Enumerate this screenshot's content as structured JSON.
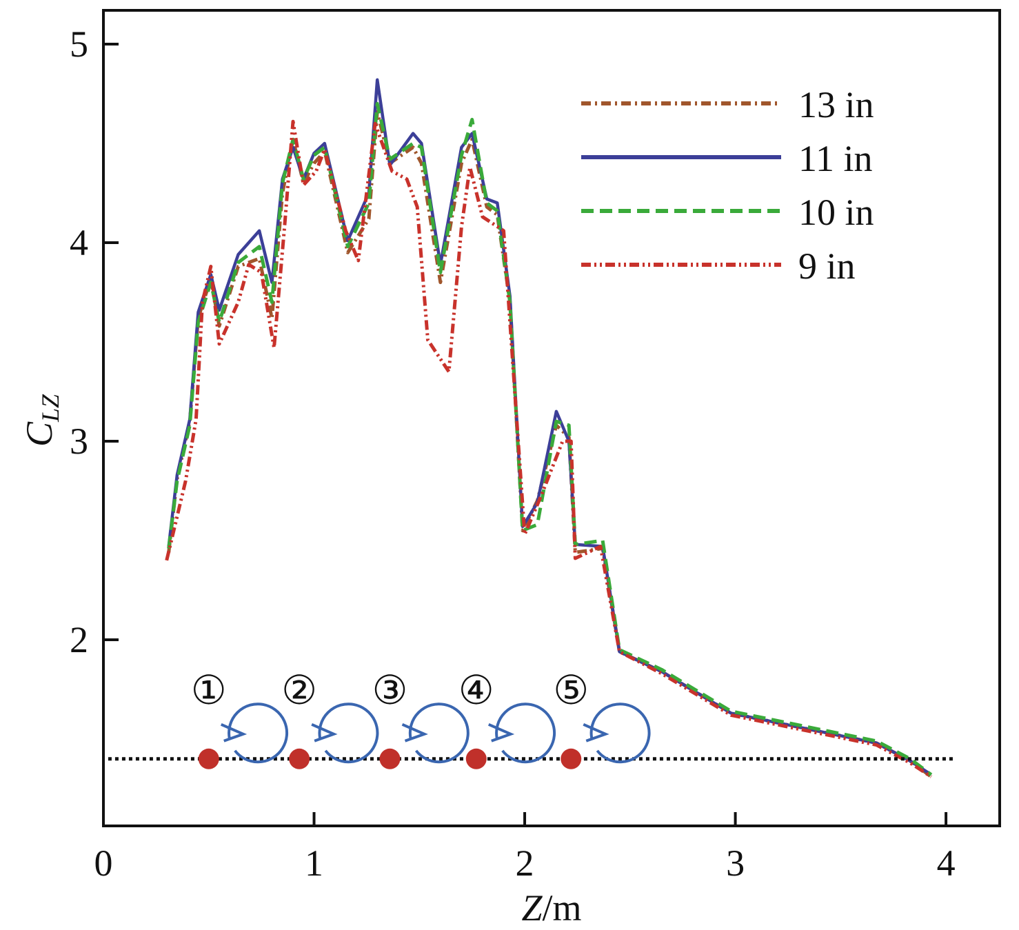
{
  "chart_data": {
    "type": "line",
    "title": "",
    "xlabel_italic": "Z",
    "xlabel_unit": "/m",
    "ylabel_main": "C",
    "ylabel_sub": "LZ",
    "xlim": [
      0,
      4.255
    ],
    "ylim": [
      1.0625,
      5.17
    ],
    "xticks": [
      0,
      1,
      2,
      3,
      4
    ],
    "yticks": [
      2,
      3,
      4,
      5
    ],
    "grid": false,
    "legend_position": "top-right",
    "series": [
      {
        "name": "13 in",
        "color": "#a0562c",
        "dash": "14,6,3,6",
        "x": [
          0.31,
          0.35,
          0.41,
          0.45,
          0.51,
          0.55,
          0.64,
          0.74,
          0.8,
          0.85,
          0.9,
          0.95,
          1.0,
          1.05,
          1.16,
          1.26,
          1.3,
          1.36,
          1.47,
          1.51,
          1.6,
          1.7,
          1.75,
          1.82,
          1.87,
          1.93,
          1.99,
          2.06,
          2.15,
          2.21,
          2.24,
          2.37,
          2.45,
          2.65,
          2.98,
          3.44,
          3.67,
          3.83,
          3.93
        ],
        "y": [
          2.44,
          2.81,
          3.1,
          3.62,
          3.82,
          3.58,
          3.88,
          3.92,
          3.62,
          4.25,
          4.52,
          4.3,
          4.4,
          4.46,
          3.95,
          4.12,
          4.66,
          4.4,
          4.48,
          4.4,
          3.8,
          4.4,
          4.52,
          4.18,
          4.14,
          3.7,
          2.55,
          2.7,
          3.08,
          3.02,
          2.44,
          2.46,
          1.94,
          1.84,
          1.63,
          1.53,
          1.48,
          1.39,
          1.31
        ]
      },
      {
        "name": "11 in",
        "color": "#3c3f98",
        "dash": "",
        "x": [
          0.31,
          0.35,
          0.41,
          0.45,
          0.51,
          0.55,
          0.64,
          0.74,
          0.8,
          0.85,
          0.9,
          0.95,
          1.0,
          1.05,
          1.16,
          1.26,
          1.3,
          1.36,
          1.47,
          1.51,
          1.6,
          1.7,
          1.75,
          1.82,
          1.87,
          1.93,
          1.99,
          2.06,
          2.15,
          2.21,
          2.24,
          2.37,
          2.45,
          2.65,
          2.98,
          3.44,
          3.67,
          3.83,
          3.93
        ],
        "y": [
          2.47,
          2.83,
          3.11,
          3.65,
          3.84,
          3.66,
          3.94,
          4.06,
          3.8,
          4.32,
          4.48,
          4.32,
          4.45,
          4.5,
          4.01,
          4.25,
          4.82,
          4.39,
          4.55,
          4.5,
          3.89,
          4.48,
          4.55,
          4.22,
          4.2,
          3.73,
          2.57,
          2.69,
          3.15,
          3.0,
          2.48,
          2.47,
          1.94,
          1.84,
          1.63,
          1.53,
          1.48,
          1.39,
          1.32
        ]
      },
      {
        "name": "10 in",
        "color": "#3aaa3a",
        "dash": "18,9",
        "x": [
          0.31,
          0.35,
          0.41,
          0.45,
          0.51,
          0.55,
          0.64,
          0.74,
          0.8,
          0.85,
          0.9,
          0.95,
          1.0,
          1.05,
          1.16,
          1.26,
          1.3,
          1.36,
          1.47,
          1.51,
          1.6,
          1.7,
          1.75,
          1.82,
          1.87,
          1.93,
          1.99,
          2.06,
          2.15,
          2.21,
          2.24,
          2.37,
          2.45,
          2.65,
          2.98,
          3.44,
          3.67,
          3.83,
          3.93
        ],
        "y": [
          2.46,
          2.8,
          3.08,
          3.6,
          3.8,
          3.6,
          3.9,
          3.98,
          3.7,
          4.3,
          4.52,
          4.32,
          4.44,
          4.48,
          3.98,
          4.2,
          4.7,
          4.42,
          4.5,
          4.48,
          3.85,
          4.44,
          4.62,
          4.2,
          4.16,
          3.7,
          2.55,
          2.58,
          3.1,
          3.08,
          2.48,
          2.5,
          1.95,
          1.85,
          1.64,
          1.54,
          1.49,
          1.4,
          1.32
        ]
      },
      {
        "name": "9 in",
        "color": "#c8322b",
        "dash": "14,5,3,5,3,5",
        "x": [
          0.3,
          0.39,
          0.44,
          0.47,
          0.51,
          0.55,
          0.64,
          0.69,
          0.75,
          0.81,
          0.86,
          0.9,
          0.95,
          1.01,
          1.05,
          1.15,
          1.21,
          1.29,
          1.37,
          1.44,
          1.49,
          1.54,
          1.64,
          1.7,
          1.74,
          1.8,
          1.9,
          2.0,
          2.08,
          2.18,
          2.22,
          2.24,
          2.36,
          2.45,
          2.65,
          2.98,
          3.44,
          3.67,
          3.83,
          3.93
        ],
        "y": [
          2.4,
          2.8,
          3.11,
          3.7,
          3.88,
          3.49,
          3.7,
          3.89,
          3.85,
          3.47,
          4.08,
          4.61,
          4.29,
          4.36,
          4.47,
          4.06,
          3.91,
          4.6,
          4.36,
          4.32,
          4.18,
          3.51,
          3.35,
          4.08,
          4.38,
          4.13,
          4.06,
          2.53,
          2.73,
          3.0,
          3.0,
          2.41,
          2.47,
          1.94,
          1.83,
          1.62,
          1.52,
          1.47,
          1.38,
          1.31
        ]
      }
    ],
    "annotations": {
      "markers": [
        "①",
        "②",
        "③",
        "④",
        "⑤"
      ],
      "marker_x": [
        0.5,
        0.93,
        1.36,
        1.77,
        2.22
      ],
      "baseline_y": 1.4,
      "baseline_x": [
        0.35,
        3.95
      ],
      "dot_color": "#c0302a",
      "arrow_color": "#3a66b0"
    }
  }
}
